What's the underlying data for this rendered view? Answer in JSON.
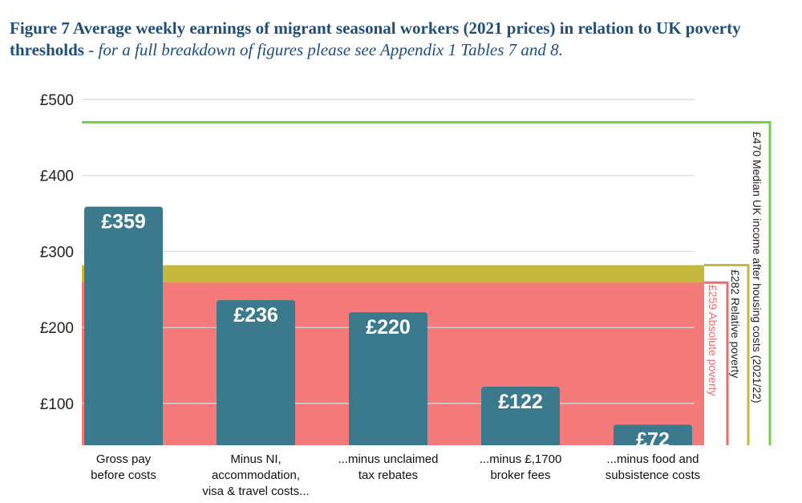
{
  "title": {
    "bold": "Figure 7 Average weekly earnings of migrant seasonal workers (2021 prices) in relation to UK poverty thresholds",
    "italic": "for a full breakdown of figures please see Appendix 1 Tables 7 and 8."
  },
  "colors": {
    "title": "#1f4e79",
    "bar": "#3a7a8c",
    "grid": "#d9d9d9",
    "absolute": "#f47a7a",
    "absolute_line": "#f06a6a",
    "relative": "#c5b83e",
    "median": "#6fcf4a"
  },
  "chart_data": {
    "type": "bar",
    "title": "Average weekly earnings of migrant seasonal workers (2021 prices) in relation to UK poverty thresholds",
    "xlabel": "",
    "ylabel": "",
    "ylim": [
      45,
      500
    ],
    "yticks": [
      100,
      200,
      300,
      400,
      500
    ],
    "ytick_labels": [
      "£100",
      "£200",
      "£300",
      "£400",
      "£500"
    ],
    "grid": true,
    "categories": [
      [
        "Gross pay",
        "before costs"
      ],
      [
        "Minus NI,",
        "accommodation,",
        "visa & travel costs..."
      ],
      [
        "...minus unclaimed",
        "tax rebates"
      ],
      [
        "...minus £,1700",
        "broker fees"
      ],
      [
        "...minus food and",
        "subsistence costs"
      ]
    ],
    "values": [
      359,
      236,
      220,
      122,
      72
    ],
    "value_labels": [
      "£359",
      "£236",
      "£220",
      "£122",
      "£72"
    ],
    "thresholds": [
      {
        "name": "absolute",
        "value": 259,
        "label": "£259 Absolute poverty"
      },
      {
        "name": "relative",
        "value": 282,
        "label": "£282 Relative poverty"
      },
      {
        "name": "median",
        "value": 470,
        "label": "£470 Median UK income after housing costs (2021/22)"
      }
    ]
  }
}
